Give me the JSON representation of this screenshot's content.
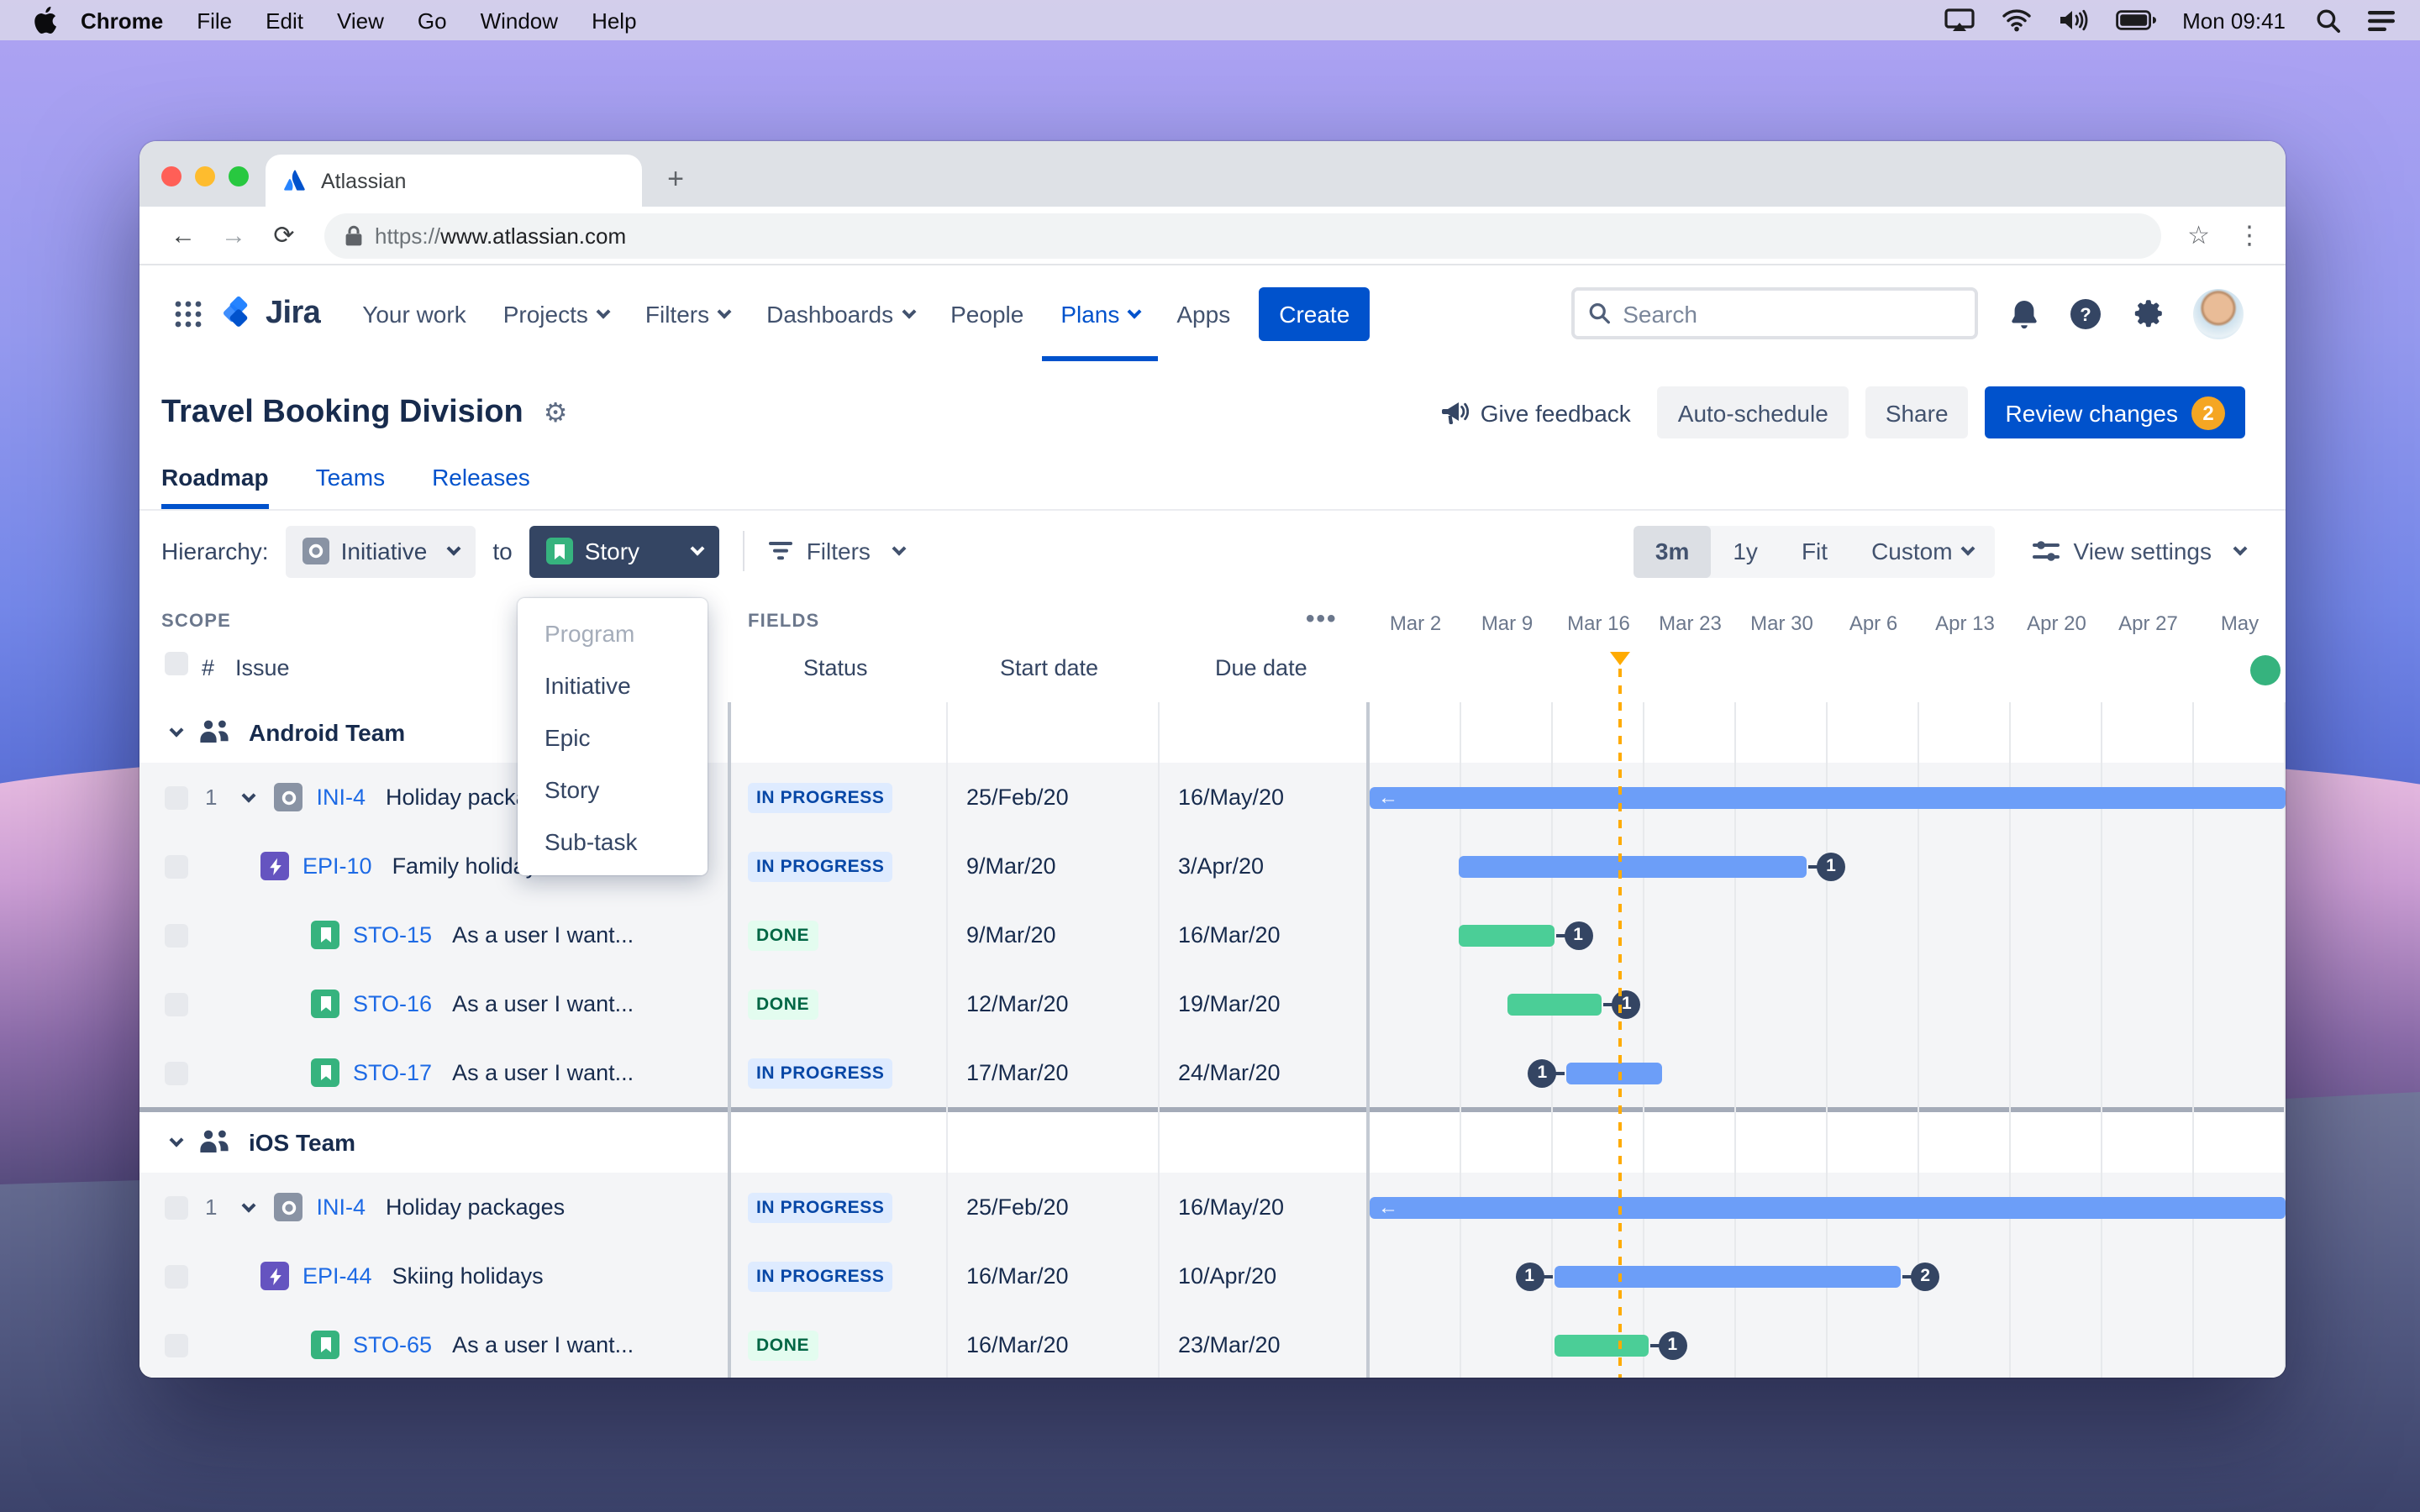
{
  "menubar": {
    "app_name": "Chrome",
    "items": [
      "File",
      "Edit",
      "View",
      "Go",
      "Window",
      "Help"
    ],
    "clock": "Mon 09:41"
  },
  "browser": {
    "tab_title": "Atlassian",
    "new_tab_label": "+",
    "back": "←",
    "forward": "→",
    "reload": "⟳",
    "url_scheme": "https://",
    "url_host": "www.atlassian.com",
    "star": "☆",
    "kebab": "⋮"
  },
  "nav": {
    "logo_text": "Jira",
    "items": [
      {
        "label": "Your work"
      },
      {
        "label": "Projects"
      },
      {
        "label": "Filters"
      },
      {
        "label": "Dashboards"
      },
      {
        "label": "People"
      },
      {
        "label": "Plans"
      },
      {
        "label": "Apps"
      }
    ],
    "active_item": "Plans",
    "create_label": "Create",
    "search_placeholder": "Search"
  },
  "header": {
    "title": "Travel Booking Division",
    "give_feedback": "Give feedback",
    "auto_schedule": "Auto-schedule",
    "share": "Share",
    "review_changes": "Review changes",
    "review_count": "2"
  },
  "page_tabs": {
    "items": [
      "Roadmap",
      "Teams",
      "Releases"
    ],
    "active": "Roadmap"
  },
  "toolbar": {
    "hierarchy_label": "Hierarchy:",
    "from_value": "Initiative",
    "to_word": "to",
    "to_value": "Story",
    "filters_label": "Filters",
    "zoom_options": [
      "3m",
      "1y",
      "Fit",
      "Custom"
    ],
    "zoom_active": "3m",
    "view_settings_label": "View settings"
  },
  "dropdown": {
    "options": [
      {
        "label": "Program",
        "disabled": true
      },
      {
        "label": "Initiative",
        "disabled": false
      },
      {
        "label": "Epic",
        "disabled": false
      },
      {
        "label": "Story",
        "disabled": false
      },
      {
        "label": "Sub-task",
        "disabled": false
      }
    ]
  },
  "table": {
    "scope_label": "SCOPE",
    "fields_label": "FIELDS",
    "col_hash": "#",
    "col_issue": "Issue",
    "col_status": "Status",
    "col_start": "Start date",
    "col_due": "Due date",
    "rows": [
      {
        "type": "group",
        "label": "Android Team"
      },
      {
        "type": "issue",
        "level": 0,
        "num": "1",
        "icon": "initiative",
        "key": "INI-4",
        "title": "Holiday packages",
        "status": "IN PROGRESS",
        "start": "25/Feb/20",
        "due": "16/May/20",
        "bar": {
          "color": "blue",
          "from": -0.4,
          "to": 10.4,
          "arrow": true
        }
      },
      {
        "type": "issue",
        "level": 1,
        "icon": "epic",
        "key": "EPI-10",
        "title": "Family holidays",
        "status": "IN PROGRESS",
        "start": "9/Mar/20",
        "due": "3/Apr/20",
        "bar": {
          "color": "blue",
          "from": 0.98,
          "to": 4.77,
          "badge_right": "1"
        }
      },
      {
        "type": "issue",
        "level": 2,
        "icon": "story",
        "key": "STO-15",
        "title": "As a user I want...",
        "status": "DONE",
        "start": "9/Mar/20",
        "due": "16/Mar/20",
        "bar": {
          "color": "green",
          "from": 0.98,
          "to": 2.01,
          "badge_right": "1"
        }
      },
      {
        "type": "issue",
        "level": 2,
        "icon": "story",
        "key": "STO-16",
        "title": "As a user I want...",
        "status": "DONE",
        "start": "12/Mar/20",
        "due": "19/Mar/20",
        "bar": {
          "color": "green",
          "from": 1.51,
          "to": 2.54,
          "badge_right": "1"
        }
      },
      {
        "type": "issue",
        "level": 2,
        "icon": "story",
        "key": "STO-17",
        "title": "As a user I want...",
        "status": "IN PROGRESS",
        "start": "17/Mar/20",
        "due": "24/Mar/20",
        "bar": {
          "color": "blue",
          "from": 2.15,
          "to": 3.2,
          "badge_left": "1"
        }
      },
      {
        "type": "divider"
      },
      {
        "type": "group",
        "label": "iOS Team"
      },
      {
        "type": "issue",
        "level": 0,
        "num": "1",
        "icon": "initiative",
        "key": "INI-4",
        "title": "Holiday packages",
        "status": "IN PROGRESS",
        "start": "25/Feb/20",
        "due": "16/May/20",
        "bar": {
          "color": "blue",
          "from": -0.4,
          "to": 10.4,
          "arrow": true
        }
      },
      {
        "type": "issue",
        "level": 1,
        "icon": "epic",
        "key": "EPI-44",
        "title": "Skiing holidays",
        "status": "IN PROGRESS",
        "start": "16/Mar/20",
        "due": "10/Apr/20",
        "bar": {
          "color": "blue",
          "from": 2.01,
          "to": 5.8,
          "badge_left": "1",
          "badge_right": "2"
        }
      },
      {
        "type": "issue",
        "level": 2,
        "icon": "story",
        "key": "STO-65",
        "title": "As a user I want...",
        "status": "DONE",
        "start": "16/Mar/20",
        "due": "23/Mar/20",
        "bar": {
          "color": "green",
          "from": 2.01,
          "to": 3.04,
          "badge_right": "1"
        }
      }
    ]
  },
  "timeline": {
    "weeks": [
      "Mar 2",
      "Mar 9",
      "Mar 16",
      "Mar 23",
      "Mar 30",
      "Apr 6",
      "Apr 13",
      "Apr 20",
      "Apr 27",
      "May"
    ],
    "today_col": 2.74,
    "release_dot_col": 9.78
  },
  "colors": {
    "accent_blue": "#0052cc",
    "bar_blue": "#6c9ef8",
    "bar_green": "#4bce97",
    "badge_navy": "#344563",
    "today_orange": "#ffab00",
    "release_green": "#36b37e",
    "status_progress_bg": "#deebff",
    "status_progress_fg": "#0747a6",
    "status_done_bg": "#e3fcef",
    "status_done_fg": "#006644"
  }
}
